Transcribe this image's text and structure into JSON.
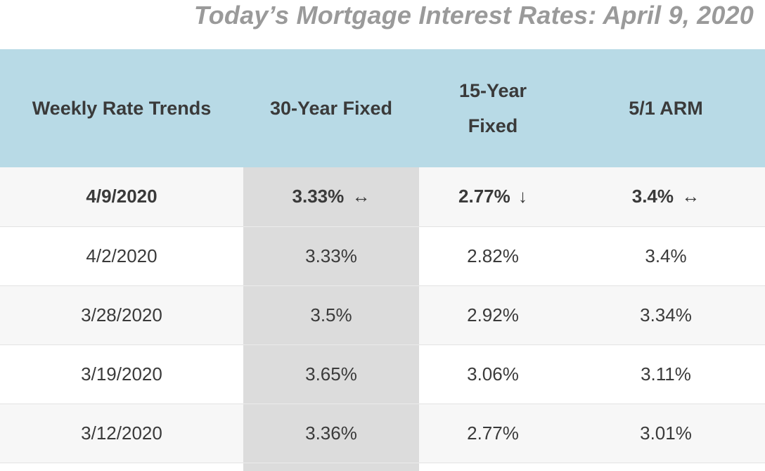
{
  "title": "Today’s Mortgage Interest Rates: April 9, 2020",
  "table": {
    "headers": [
      "Weekly Rate Trends",
      "30-Year Fixed",
      "15-Year Fixed",
      "5/1 ARM"
    ],
    "rows": [
      {
        "date": "4/9/2020",
        "fixed30": "3.33%",
        "fixed30_trend": "↔",
        "fixed15": "2.77%",
        "fixed15_trend": "↓",
        "arm51": "3.4%",
        "arm51_trend": "↔"
      },
      {
        "date": "4/2/2020",
        "fixed30": "3.33%",
        "fixed15": "2.82%",
        "arm51": "3.4%"
      },
      {
        "date": "3/28/2020",
        "fixed30": "3.5%",
        "fixed15": "2.92%",
        "arm51": "3.34%"
      },
      {
        "date": "3/19/2020",
        "fixed30": "3.65%",
        "fixed15": "3.06%",
        "arm51": "3.11%"
      },
      {
        "date": "3/12/2020",
        "fixed30": "3.36%",
        "fixed15": "2.77%",
        "arm51": "3.01%"
      }
    ]
  },
  "colors": {
    "header_bg": "#b8dae6",
    "highlight_column_bg": "#dcdcdc",
    "title_color": "#9a9a9a",
    "text_color": "#3a3a3a"
  }
}
